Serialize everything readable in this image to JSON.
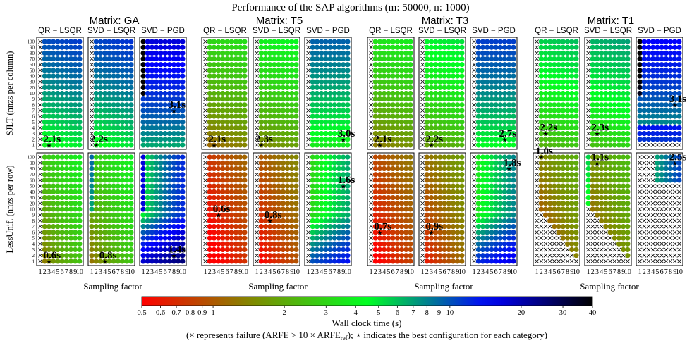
{
  "title": "Performance of the SAP algorithms (m: 50000, n: 1000)",
  "chart_data": {
    "type": "heatmap",
    "matrices": [
      "Matrix: GA",
      "Matrix: T5",
      "Matrix: T3",
      "Matrix: T1"
    ],
    "methods": [
      "QR − LSQR",
      "SVD − LSQR",
      "SVD − PGD"
    ],
    "rows": [
      "SJLT (nnzs per column)",
      "LessUnif. (nnzs per row)"
    ],
    "xlabel": "Sampling factor",
    "x_ticks": [
      "1",
      "2",
      "3",
      "4",
      "5",
      "6",
      "7",
      "8",
      "9",
      "10"
    ],
    "y_ticks": [
      "1",
      "2",
      "3",
      "4",
      "5",
      "6",
      "7",
      "8",
      "9",
      "10",
      "20",
      "30",
      "40",
      "50",
      "60",
      "70",
      "80",
      "90",
      "100"
    ],
    "best_time_labels": {
      "SJLT": [
        [
          "2.1s",
          "2.2s",
          "3.1s"
        ],
        [
          "2.1s",
          "2.3s",
          "3.0s"
        ],
        [
          "2.1s",
          "2.2s",
          "2.7s"
        ],
        [
          "2.2s",
          "2.3s",
          "3.1s"
        ]
      ],
      "LessUnif": [
        [
          "0.6s",
          "0.8s",
          "1.4s"
        ],
        [
          "0.6s",
          "0.8s",
          "1.6s"
        ],
        [
          "0.7s",
          "0.9s",
          "1.8s"
        ],
        [
          "1.0s",
          "1.1s",
          "2.5s"
        ]
      ]
    },
    "best_config": {
      "SJLT": [
        [
          [
            3,
            1
          ],
          [
            2,
            1
          ],
          [
            8,
            7
          ]
        ],
        [
          [
            3,
            1
          ],
          [
            2,
            1
          ],
          [
            9,
            2
          ]
        ],
        [
          [
            3,
            1
          ],
          [
            3,
            1
          ],
          [
            8,
            2
          ]
        ],
        [
          [
            3,
            3
          ],
          [
            3,
            3
          ],
          [
            9,
            8
          ]
        ]
      ],
      "LessUnif": [
        [
          [
            3,
            1
          ],
          [
            4,
            1
          ],
          [
            8,
            2
          ]
        ],
        [
          [
            4,
            9
          ],
          [
            4,
            8
          ],
          [
            9,
            50
          ]
        ],
        [
          [
            3,
            6
          ],
          [
            3,
            6
          ],
          [
            9,
            80
          ]
        ],
        [
          [
            2,
            100
          ],
          [
            3,
            90
          ],
          [
            9,
            90
          ]
        ]
      ]
    },
    "colorbar": {
      "label": "Wall clock time (s)",
      "scale": "log",
      "range": [
        0.5,
        40
      ],
      "ticks": [
        "0.5",
        "0.6",
        "0.7",
        "0.8",
        "0.9",
        "1",
        "2",
        "3",
        "4",
        "5",
        "6",
        "7",
        "8",
        "9",
        "10",
        "20",
        "30",
        "40"
      ],
      "colors": [
        "#ff0000",
        "#7e8c00",
        "#00ff22",
        "#0000ff",
        "#000000"
      ]
    },
    "footnote": "(× represents failure (ARFE > 10 × ARFE",
    "footnote_sub": "ref",
    "footnote_tail": "); ⋆ indicates the best configuration for each category)",
    "failure_symbol": "×",
    "best_symbol": "⋆"
  }
}
